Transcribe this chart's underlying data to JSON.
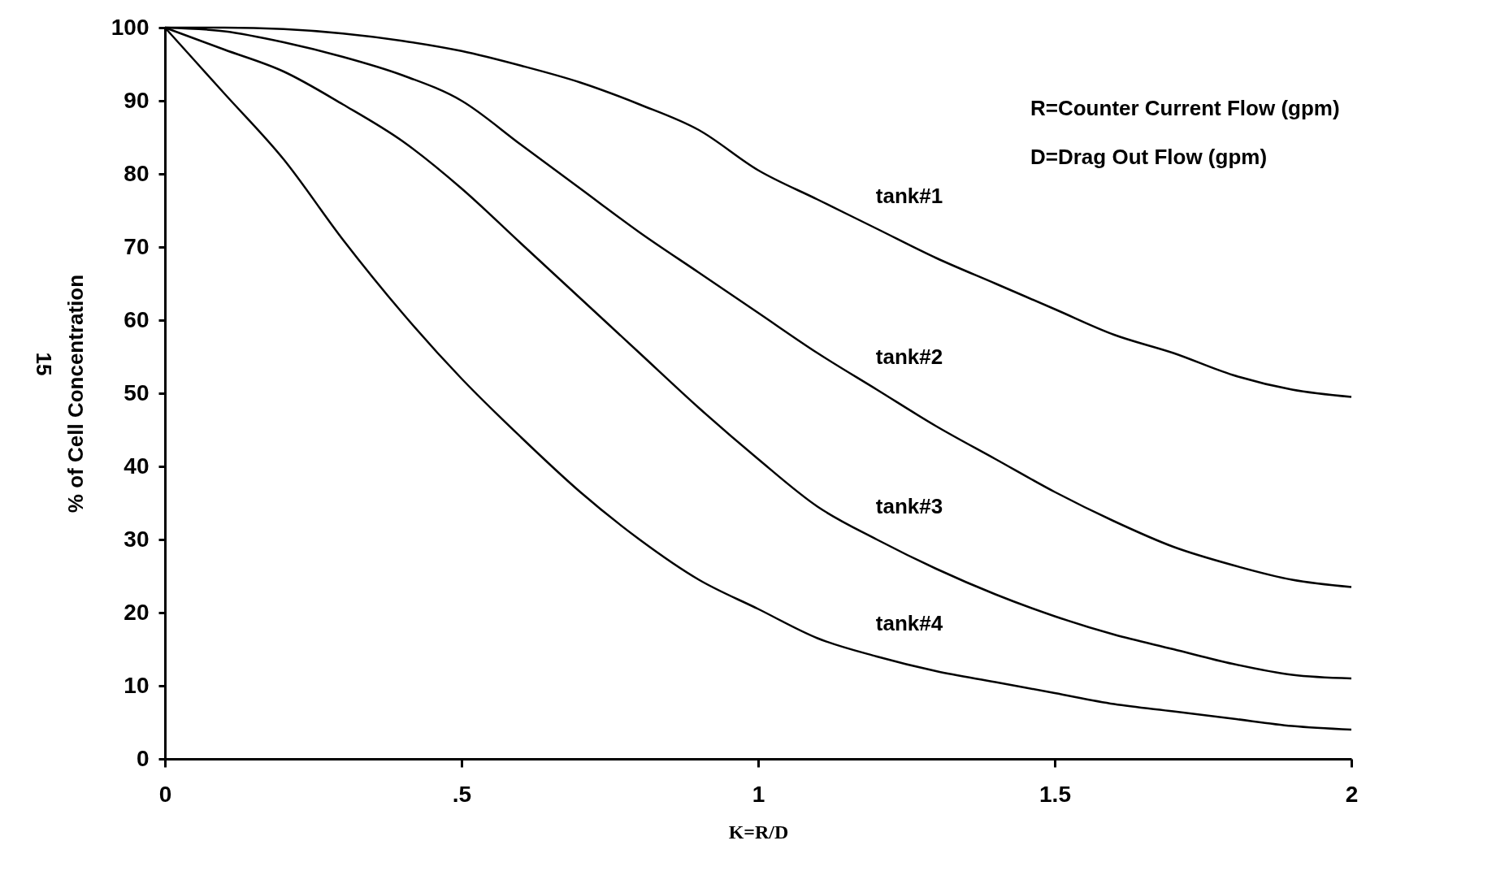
{
  "chart_data": {
    "type": "line",
    "xlabel": "K=R/D",
    "ylabel": "% of Cell Concentration",
    "x": [
      0,
      0.1,
      0.2,
      0.3,
      0.4,
      0.5,
      0.6,
      0.7,
      0.8,
      0.9,
      1.0,
      1.1,
      1.2,
      1.3,
      1.4,
      1.5,
      1.6,
      1.7,
      1.8,
      1.9,
      2.0
    ],
    "series": [
      {
        "name": "tank#1",
        "color": "#000000",
        "values": [
          100,
          100,
          99.8,
          99.2,
          98.2,
          96.8,
          94.8,
          92.5,
          89.5,
          86,
          80.5,
          76.5,
          72.5,
          68.5,
          65,
          61.5,
          58,
          55.5,
          52.5,
          50.5,
          49.5
        ]
      },
      {
        "name": "tank#2",
        "color": "#000000",
        "values": [
          100,
          99.5,
          98,
          96,
          93.5,
          90,
          84,
          78,
          72,
          66.5,
          61,
          55.5,
          50.5,
          45.5,
          41,
          36.5,
          32.5,
          29,
          26.5,
          24.5,
          23.5
        ]
      },
      {
        "name": "tank#3",
        "color": "#000000",
        "values": [
          100,
          97,
          94,
          89.5,
          84.5,
          78,
          70.5,
          63,
          55.5,
          48,
          41,
          34.5,
          30,
          26,
          22.5,
          19.5,
          17,
          15,
          13,
          11.5,
          11
        ]
      },
      {
        "name": "tank#4",
        "color": "#000000",
        "values": [
          100,
          91,
          82,
          71,
          61,
          52,
          44,
          36.5,
          30,
          24.5,
          20.5,
          16.5,
          14,
          12,
          10.5,
          9,
          7.5,
          6.5,
          5.5,
          4.5,
          4
        ]
      }
    ],
    "xlim": [
      0,
      2
    ],
    "xticks": [
      0,
      {
        "value": 0.5,
        "label": ".5"
      },
      1,
      1.5,
      2
    ],
    "ylim": [
      0,
      100
    ],
    "yticks": [
      0,
      10,
      20,
      30,
      40,
      50,
      60,
      70,
      80,
      90,
      100
    ],
    "grid": false,
    "legend": false,
    "marker": "none",
    "line_style": "solid",
    "annotations": [
      "R=Counter Current Flow (gpm)",
      "D=Drag Out Flow (gpm)",
      "15"
    ]
  }
}
